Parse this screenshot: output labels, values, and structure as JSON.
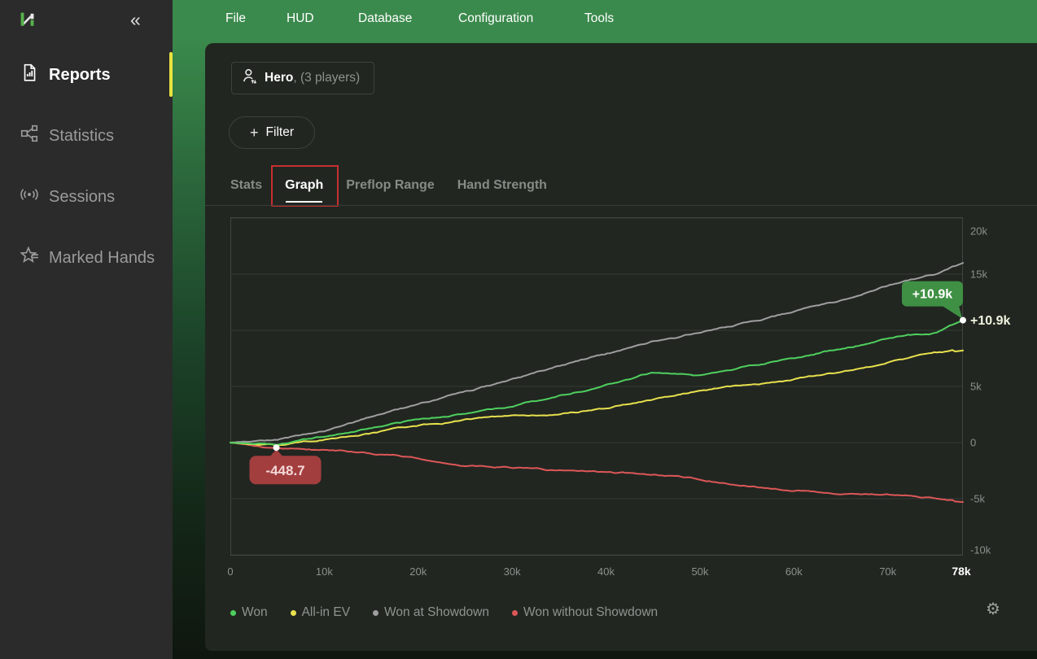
{
  "sidebar": {
    "logo_name": "hand2note-logo",
    "collapse_glyph": "«",
    "items": [
      {
        "label": "Reports",
        "icon": "report-document-icon",
        "active": true
      },
      {
        "label": "Statistics",
        "icon": "statistics-share-icon",
        "active": false
      },
      {
        "label": "Sessions",
        "icon": "sessions-broadcast-icon",
        "active": false
      },
      {
        "label": "Marked Hands",
        "icon": "marked-hands-star-icon",
        "active": false
      }
    ],
    "active_accent_color": "#e8e33f"
  },
  "menubar": {
    "background": "#3b8a4d",
    "items": [
      {
        "label": "File"
      },
      {
        "label": "HUD"
      },
      {
        "label": "Database"
      },
      {
        "label": "Configuration"
      },
      {
        "label": "Tools"
      }
    ]
  },
  "toolbar": {
    "player_selector": {
      "name": "Hero",
      "suffix": ", (3 players)",
      "icon": "player-switch-icon"
    },
    "filter_button": {
      "plus": "+",
      "label": "Filter"
    }
  },
  "tabs": {
    "annotation_color": "#c62f2f",
    "items": [
      {
        "label": "Stats",
        "active": false
      },
      {
        "label": "Graph",
        "active": true,
        "annotated": true
      },
      {
        "label": "Preflop Range",
        "active": false
      },
      {
        "label": "Hand Strength",
        "active": false
      }
    ]
  },
  "chart_data": {
    "type": "line",
    "x_unit": "hands",
    "xlim_k": [
      0,
      78
    ],
    "ylim_k": [
      -10,
      20
    ],
    "grid": "horizontal",
    "x_ticks": [
      {
        "v": 0,
        "label": "0"
      },
      {
        "v": 10,
        "label": "10k"
      },
      {
        "v": 20,
        "label": "20k"
      },
      {
        "v": 30,
        "label": "30k"
      },
      {
        "v": 40,
        "label": "40k"
      },
      {
        "v": 50,
        "label": "50k"
      },
      {
        "v": 60,
        "label": "60k"
      },
      {
        "v": 70,
        "label": "70k"
      },
      {
        "v": 78,
        "label": "78k",
        "emphasis": true
      }
    ],
    "y_ticks": [
      {
        "v": 20,
        "label": "20k"
      },
      {
        "v": 15,
        "label": "15k"
      },
      {
        "v": 10,
        "label": null
      },
      {
        "v": 5,
        "label": "5k"
      },
      {
        "v": 0,
        "label": "0"
      },
      {
        "v": -5,
        "label": "-5k"
      },
      {
        "v": -10,
        "label": "-10k"
      }
    ],
    "anchors_x_k": [
      0,
      5,
      10,
      15,
      20,
      25,
      30,
      35,
      40,
      45,
      50,
      55,
      60,
      65,
      70,
      75,
      78
    ],
    "series": [
      {
        "name": "Won without Showdown",
        "color": "#dd5757",
        "values_k": [
          0,
          -0.45,
          -0.7,
          -1.05,
          -1.4,
          -1.9,
          -2.2,
          -2.5,
          -2.7,
          -2.9,
          -3.3,
          -3.8,
          -4.1,
          -4.3,
          -4.6,
          -5.1,
          -5.3
        ]
      },
      {
        "name": "Won at Showdown",
        "color": "#9e9e9e",
        "values_k": [
          0,
          0.2,
          1.1,
          2.3,
          3.4,
          4.6,
          5.6,
          6.8,
          7.9,
          9.0,
          9.8,
          10.7,
          11.7,
          12.7,
          13.9,
          15.0,
          16.0
        ]
      },
      {
        "name": "All-in EV",
        "color": "#e8e14d",
        "values_k": [
          0,
          -0.35,
          0.3,
          0.9,
          1.5,
          2.0,
          2.4,
          2.7,
          3.1,
          3.9,
          4.6,
          5.1,
          5.6,
          6.3,
          7.2,
          7.9,
          8.2
        ]
      },
      {
        "name": "Won",
        "color": "#4fd05e",
        "values_k": [
          0,
          -0.2,
          0.5,
          1.3,
          2.0,
          2.6,
          3.3,
          4.2,
          5.2,
          6.3,
          5.9,
          6.9,
          7.6,
          8.4,
          9.2,
          9.8,
          10.9
        ]
      }
    ],
    "markers": [
      {
        "series": "Won",
        "x_k": 78,
        "value_k": 10.9,
        "label": "+10.9k",
        "badge_bg": "#3f9044",
        "badge_color": "#ffffff",
        "tail": "bottom-right"
      },
      {
        "series": "Won without Showdown",
        "x_k": 4.9,
        "value_k": -0.4487,
        "label": "-448.7",
        "badge_bg": "#a33e3e",
        "badge_color": "#f3d8d8",
        "tail": "top"
      }
    ],
    "end_axis_label": {
      "label": "+10.9k",
      "value_k": 10.9,
      "color": "#eff4de"
    },
    "legend": [
      {
        "label": "Won",
        "color": "#4fd05e"
      },
      {
        "label": "All-in EV",
        "color": "#e8e14d"
      },
      {
        "label": "Won at Showdown",
        "color": "#9e9e9e"
      },
      {
        "label": "Won without Showdown",
        "color": "#dd5757"
      }
    ]
  },
  "footer": {
    "settings_icon": "gear-icon",
    "gear_glyph": "⚙"
  },
  "colors": {
    "topbar_green": "#3b8a4d",
    "panel_bg": "#212621",
    "sidebar_bg": "#2b2b2b",
    "accent_yellow": "#e8e33f",
    "annotation_red": "#c62f2f"
  }
}
